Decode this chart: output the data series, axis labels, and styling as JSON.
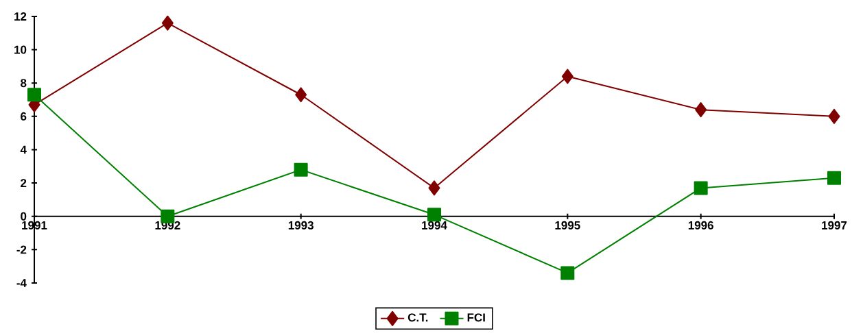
{
  "chart_data": {
    "type": "line",
    "categories": [
      "1991",
      "1992",
      "1993",
      "1994",
      "1995",
      "1996",
      "1997"
    ],
    "ylim": [
      -4,
      12
    ],
    "yticks": [
      -4,
      -2,
      0,
      2,
      4,
      6,
      8,
      10,
      12
    ],
    "legend": "bottom",
    "line_style": "solid",
    "series": [
      {
        "name": "C.T.",
        "color": "#800000",
        "marker": "diamond",
        "values": [
          6.7,
          11.6,
          7.3,
          1.7,
          8.4,
          6.4,
          6.0
        ]
      },
      {
        "name": "FCI",
        "color": "#008000",
        "marker": "square",
        "values": [
          7.3,
          0,
          2.8,
          0.1,
          -3.4,
          1.7,
          2.3
        ]
      }
    ]
  }
}
